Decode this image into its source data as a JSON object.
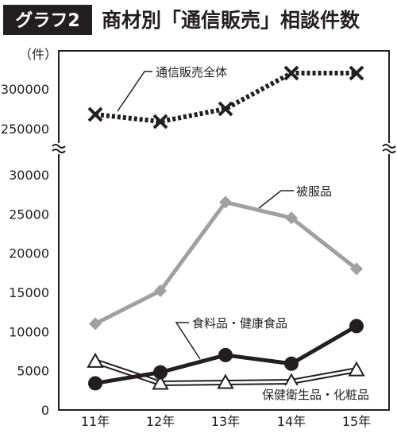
{
  "header": {
    "badge": "グラフ2",
    "title": "商材別「通信販売」相談件数"
  },
  "chart_data": {
    "type": "line",
    "categories": [
      "11年",
      "12年",
      "13年",
      "14年",
      "15年"
    ],
    "y_unit": "（件）",
    "upper_axis": {
      "ticks": [
        "300000",
        "250000"
      ],
      "ylim": [
        240000,
        330000
      ]
    },
    "lower_axis": {
      "ticks": [
        "30000",
        "25000",
        "20000",
        "15000",
        "10000",
        "5000",
        "0"
      ],
      "ylim": [
        0,
        34000
      ]
    },
    "axis_break": true,
    "grid": false,
    "series": [
      {
        "name": "通信販売全体",
        "values": [
          268000,
          259000,
          275000,
          320000,
          320000
        ],
        "axis": "upper",
        "color": "#231f20",
        "style": "dotted-thick",
        "marker": "x"
      },
      {
        "name": "被服品",
        "values": [
          11000,
          15200,
          26500,
          24500,
          18000
        ],
        "axis": "lower",
        "color": "#a0a0a0",
        "style": "solid-thick",
        "marker": "diamond"
      },
      {
        "name": "食料品・健康食品",
        "values": [
          3400,
          4800,
          7000,
          5900,
          10700
        ],
        "axis": "lower",
        "color": "#231f20",
        "style": "solid-thick",
        "marker": "circle"
      },
      {
        "name": "保健衛生品・化粧品",
        "values": [
          6200,
          3400,
          3500,
          3600,
          5100
        ],
        "axis": "lower",
        "color": "#231f20",
        "style": "double",
        "marker": "triangle"
      }
    ]
  }
}
